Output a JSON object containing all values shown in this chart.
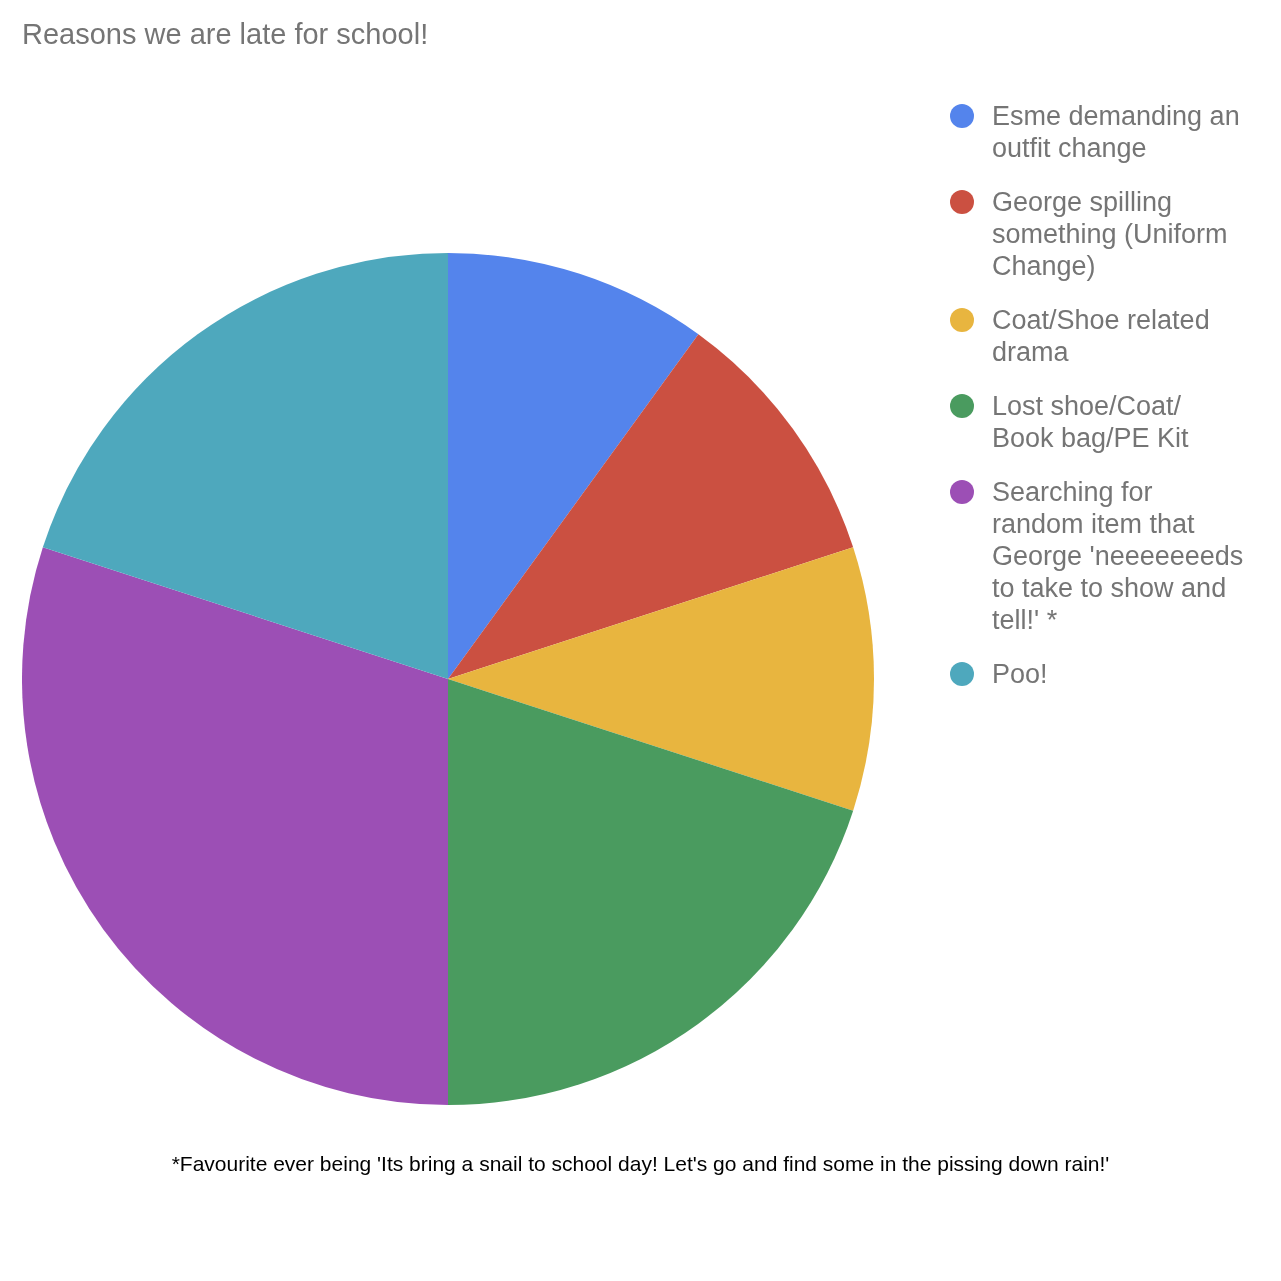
{
  "chart_data": {
    "type": "pie",
    "title": "Reasons we are late for school!",
    "categories": [
      "Esme demanding an outfit change",
      "George spilling something (Uniform Change)",
      "Coat/Shoe related drama",
      "Lost shoe/Coat/ Book bag/PE Kit",
      "Searching for random item that George 'neeeeeeeds to take to show and tell!' *",
      "Poo!"
    ],
    "values": [
      10,
      10,
      10,
      20,
      30,
      20
    ],
    "colors": [
      "#5484ec",
      "#cb5041",
      "#e8b53f",
      "#4a9b5f",
      "#9c4fb5",
      "#4ea8bd"
    ],
    "legend": "right",
    "annotations": [
      "*Favourite ever being 'Its bring a snail to school day! Let's go and find some in the pissing down rain!'"
    ]
  }
}
